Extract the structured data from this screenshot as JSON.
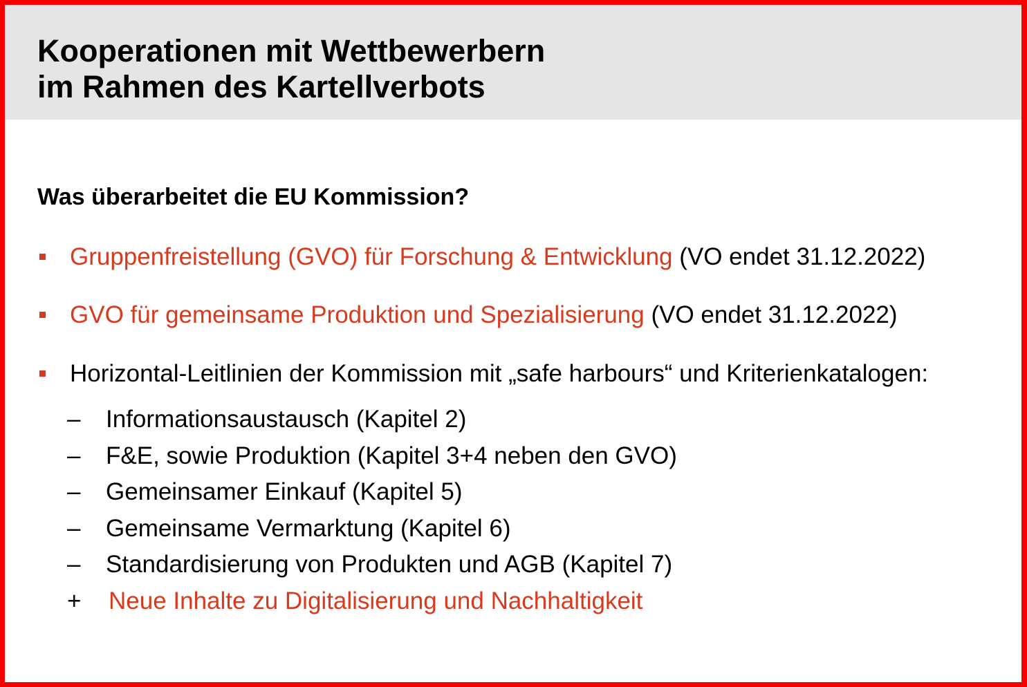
{
  "slide": {
    "title_line1": "Kooperationen mit Wettbewerbern",
    "title_line2": "im Rahmen des Kartellverbots",
    "question": "Was überarbeitet die EU Kommission?",
    "bullets": [
      {
        "highlight": "Gruppenfreistellung (GVO) für Forschung & Entwicklung",
        "rest": " (VO endet 31.12.2022)"
      },
      {
        "highlight": "GVO für gemeinsame Produktion und Spezialisierung",
        "rest": " (VO endet 31.12.2022)"
      },
      {
        "highlight": "",
        "rest": "Horizontal-Leitlinien der Kommission mit „safe harbours“ und Kriterienkatalogen:"
      }
    ],
    "sub_items": [
      {
        "marker": "–",
        "text": "Informationsaustausch (Kapitel 2)"
      },
      {
        "marker": "–",
        "text": "F&E, sowie Produktion (Kapitel 3+4 neben den GVO)"
      },
      {
        "marker": "–",
        "text": "Gemeinsamer Einkauf (Kapitel 5)"
      },
      {
        "marker": "–",
        "text": "Gemeinsame Vermarktung (Kapitel 6)"
      },
      {
        "marker": "–",
        "text": "Standardisierung von Produkten und AGB (Kapitel 7)"
      },
      {
        "marker": "+",
        "text": "Neue Inhalte zu Digitalisierung und Nachhaltigkeit"
      }
    ]
  },
  "colors": {
    "accent": "#d9391c",
    "border": "#f40000",
    "header_bg": "#e6e5e6"
  }
}
